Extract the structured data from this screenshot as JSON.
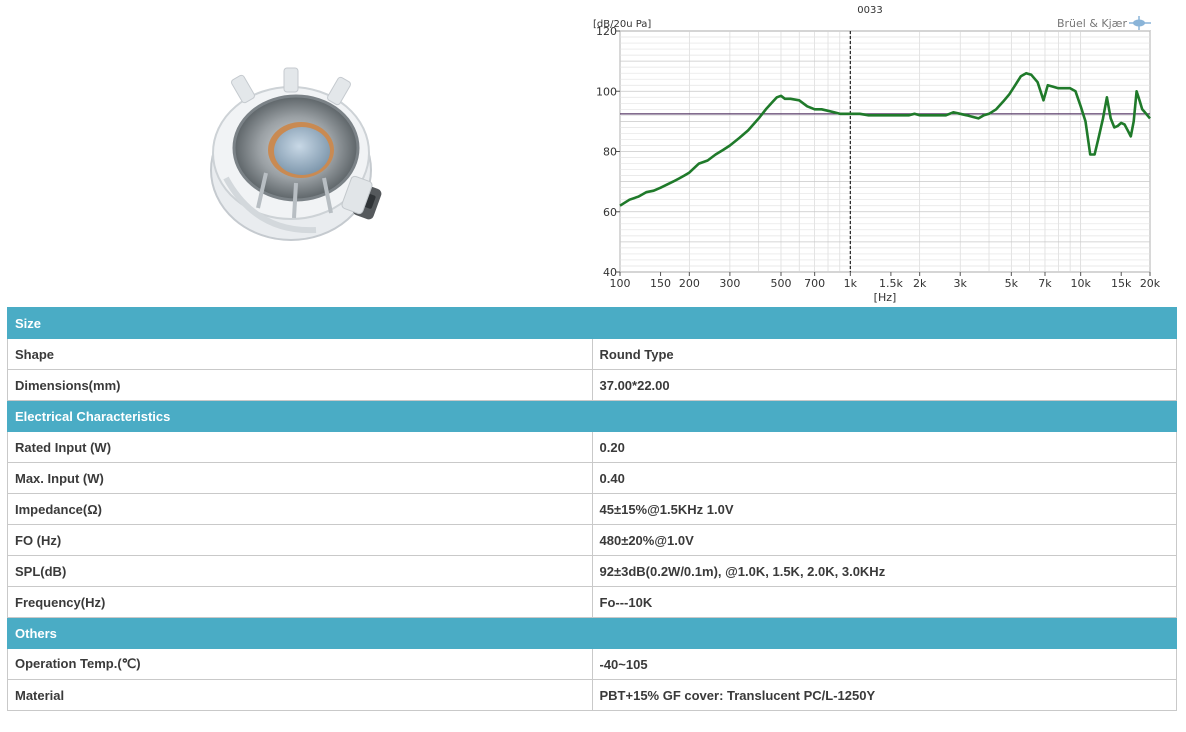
{
  "chart_data": {
    "type": "line",
    "title": "0033",
    "brand": "Brüel & Kjær",
    "ylabel": "[dB/20u Pa]",
    "xlabel": "[Hz]",
    "xscale": "log",
    "xlim": [
      100,
      20000
    ],
    "ylim": [
      40,
      120
    ],
    "yticks": [
      40,
      60,
      80,
      100,
      120
    ],
    "xticks": [
      {
        "value": 100,
        "label": "100"
      },
      {
        "value": 150,
        "label": "150"
      },
      {
        "value": 200,
        "label": "200"
      },
      {
        "value": 300,
        "label": "300"
      },
      {
        "value": 500,
        "label": "500"
      },
      {
        "value": 700,
        "label": "700"
      },
      {
        "value": 1000,
        "label": "1k"
      },
      {
        "value": 1500,
        "label": "1.5k"
      },
      {
        "value": 2000,
        "label": "2k"
      },
      {
        "value": 3000,
        "label": "3k"
      },
      {
        "value": 5000,
        "label": "5k"
      },
      {
        "value": 7000,
        "label": "7k"
      },
      {
        "value": 10000,
        "label": "10k"
      },
      {
        "value": 15000,
        "label": "15k"
      },
      {
        "value": 20000,
        "label": "20k"
      }
    ],
    "grid": true,
    "series_color": "#1f7a2a",
    "cursor_color": "#5a3d6a",
    "cursor": {
      "x": 1000,
      "y": 92.5
    },
    "x": [
      100,
      110,
      120,
      130,
      140,
      150,
      160,
      170,
      180,
      190,
      200,
      220,
      240,
      260,
      280,
      300,
      330,
      360,
      400,
      430,
      460,
      480,
      500,
      520,
      550,
      600,
      650,
      700,
      750,
      800,
      850,
      900,
      950,
      1000,
      1100,
      1200,
      1300,
      1400,
      1500,
      1600,
      1700,
      1800,
      1900,
      2000,
      2200,
      2400,
      2600,
      2800,
      3000,
      3200,
      3400,
      3600,
      3800,
      4000,
      4300,
      4600,
      4900,
      5200,
      5500,
      5800,
      6100,
      6500,
      6900,
      7200,
      7600,
      8000,
      8500,
      9000,
      9500,
      10000,
      10500,
      11000,
      11500,
      12000,
      12500,
      13000,
      13500,
      14000,
      14500,
      15000,
      15500,
      16000,
      16500,
      17000,
      17500,
      18000,
      18500,
      19000,
      20000
    ],
    "values": [
      62,
      64,
      65,
      66.5,
      67,
      68,
      69,
      70,
      71,
      72,
      73,
      76,
      77,
      79,
      80.5,
      82,
      84.5,
      87,
      91,
      94,
      96.5,
      98,
      98.5,
      97.5,
      97.5,
      97,
      95,
      94,
      94,
      93.5,
      93,
      92.5,
      92.5,
      92.5,
      92.5,
      92,
      92,
      92,
      92,
      92,
      92,
      92,
      92.5,
      92,
      92,
      92,
      92,
      93,
      92.5,
      92,
      91.5,
      91,
      92,
      92.5,
      94,
      96.5,
      99,
      102,
      105,
      106,
      105.5,
      103,
      97,
      102,
      101.5,
      101,
      101,
      101,
      100,
      95,
      90,
      79,
      79,
      85,
      91,
      98,
      91,
      88,
      88.5,
      89.5,
      89,
      87,
      85,
      90,
      100,
      97,
      94,
      93,
      91
    ]
  },
  "table": {
    "sections": [
      {
        "title": "Size",
        "rows": [
          {
            "label": "Shape",
            "value": "Round Type"
          },
          {
            "label": "Dimensions(mm)",
            "value": "37.00*22.00"
          }
        ]
      },
      {
        "title": "Electrical Characteristics",
        "rows": [
          {
            "label": "Rated Input (W)",
            "value": "0.20"
          },
          {
            "label": "Max. Input (W)",
            "value": "0.40"
          },
          {
            "label": "Impedance(Ω)",
            "value": "45±15%@1.5KHz 1.0V"
          },
          {
            "label": "FO (Hz)",
            "value": "480±20%@1.0V"
          },
          {
            "label": "SPL(dB)",
            "value": "92±3dB(0.2W/0.1m), @1.0K, 1.5K, 2.0K, 3.0KHz"
          },
          {
            "label": "Frequency(Hz)",
            "value": "Fo---10K"
          }
        ]
      },
      {
        "title": "Others",
        "rows": [
          {
            "label": "Operation Temp.(℃)",
            "value": "-40~105"
          },
          {
            "label": "Material",
            "value": "PBT+15% GF cover: Translucent PC/L-1250Y"
          }
        ]
      }
    ]
  }
}
